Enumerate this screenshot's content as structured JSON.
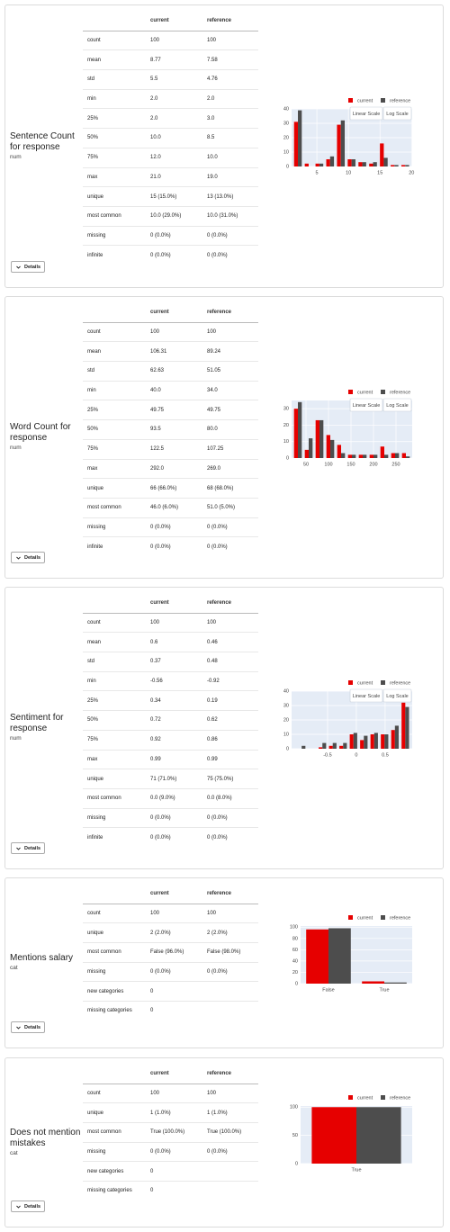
{
  "cards": [
    {
      "title": "Sentence Count for response",
      "type": "num",
      "details": "Details",
      "scale_buttons": [
        "Linear Scale",
        "Log Scale"
      ],
      "table": {
        "header": [
          "current",
          "reference"
        ],
        "rows": [
          [
            "count",
            "100",
            "100"
          ],
          [
            "mean",
            "8.77",
            "7.58"
          ],
          [
            "std",
            "5.5",
            "4.76"
          ],
          [
            "min",
            "2.0",
            "2.0"
          ],
          [
            "25%",
            "2.0",
            "3.0"
          ],
          [
            "50%",
            "10.0",
            "8.5"
          ],
          [
            "75%",
            "12.0",
            "10.0"
          ],
          [
            "max",
            "21.0",
            "19.0"
          ],
          [
            "unique",
            "15 (15.0%)",
            "13 (13.0%)"
          ],
          [
            "most common",
            "10.0 (29.0%)",
            "10.0 (31.0%)"
          ],
          [
            "missing",
            "0 (0.0%)",
            "0 (0.0%)"
          ],
          [
            "infinite",
            "0 (0.0%)",
            "0 (0.0%)"
          ]
        ]
      }
    },
    {
      "title": "Word Count for response",
      "type": "num",
      "details": "Details",
      "scale_buttons": [
        "Linear Scale",
        "Log Scale"
      ],
      "table": {
        "header": [
          "current",
          "reference"
        ],
        "rows": [
          [
            "count",
            "100",
            "100"
          ],
          [
            "mean",
            "106.31",
            "89.24"
          ],
          [
            "std",
            "62.63",
            "51.05"
          ],
          [
            "min",
            "40.0",
            "34.0"
          ],
          [
            "25%",
            "49.75",
            "49.75"
          ],
          [
            "50%",
            "93.5",
            "80.0"
          ],
          [
            "75%",
            "122.5",
            "107.25"
          ],
          [
            "max",
            "292.0",
            "269.0"
          ],
          [
            "unique",
            "66 (66.0%)",
            "68 (68.0%)"
          ],
          [
            "most common",
            "46.0 (6.0%)",
            "51.0 (5.0%)"
          ],
          [
            "missing",
            "0 (0.0%)",
            "0 (0.0%)"
          ],
          [
            "infinite",
            "0 (0.0%)",
            "0 (0.0%)"
          ]
        ]
      }
    },
    {
      "title": "Sentiment for response",
      "type": "num",
      "details": "Details",
      "scale_buttons": [
        "Linear Scale",
        "Log Scale"
      ],
      "table": {
        "header": [
          "current",
          "reference"
        ],
        "rows": [
          [
            "count",
            "100",
            "100"
          ],
          [
            "mean",
            "0.6",
            "0.46"
          ],
          [
            "std",
            "0.37",
            "0.48"
          ],
          [
            "min",
            "-0.56",
            "-0.92"
          ],
          [
            "25%",
            "0.34",
            "0.19"
          ],
          [
            "50%",
            "0.72",
            "0.62"
          ],
          [
            "75%",
            "0.92",
            "0.86"
          ],
          [
            "max",
            "0.99",
            "0.99"
          ],
          [
            "unique",
            "71 (71.0%)",
            "75 (75.0%)"
          ],
          [
            "most common",
            "0.0 (9.0%)",
            "0.0 (8.0%)"
          ],
          [
            "missing",
            "0 (0.0%)",
            "0 (0.0%)"
          ],
          [
            "infinite",
            "0 (0.0%)",
            "0 (0.0%)"
          ]
        ]
      }
    },
    {
      "title": "Mentions salary",
      "type": "cat",
      "details": "Details",
      "table": {
        "header": [
          "current",
          "reference"
        ],
        "rows": [
          [
            "count",
            "100",
            "100"
          ],
          [
            "unique",
            "2 (2.0%)",
            "2 (2.0%)"
          ],
          [
            "most common",
            "False (96.0%)",
            "False (98.0%)"
          ],
          [
            "missing",
            "0 (0.0%)",
            "0 (0.0%)"
          ],
          [
            "new categories",
            "0"
          ],
          [
            "missing categories",
            "0"
          ]
        ]
      }
    },
    {
      "title": "Does not mention mistakes",
      "type": "cat",
      "details": "Details",
      "table": {
        "header": [
          "current",
          "reference"
        ],
        "rows": [
          [
            "count",
            "100",
            "100"
          ],
          [
            "unique",
            "1 (1.0%)",
            "1 (1.0%)"
          ],
          [
            "most common",
            "True (100.0%)",
            "True (100.0%)"
          ],
          [
            "missing",
            "0 (0.0%)",
            "0 (0.0%)"
          ],
          [
            "new categories",
            "0"
          ],
          [
            "missing categories",
            "0"
          ]
        ]
      }
    }
  ],
  "chart_data": [
    {
      "type": "bar",
      "x": [
        2.0,
        3.7,
        5.4,
        7.1,
        8.8,
        10.5,
        12.2,
        13.9,
        15.6,
        17.3,
        19.0
      ],
      "series": [
        {
          "name": "current",
          "color": "#e60000",
          "values": [
            31,
            2,
            2,
            5,
            29,
            5,
            3,
            2,
            16,
            1,
            1
          ]
        },
        {
          "name": "reference",
          "color": "#4d4d4d",
          "values": [
            39,
            0,
            2,
            7,
            32,
            5,
            3,
            3,
            6,
            1,
            1
          ]
        }
      ],
      "xlim": [
        1,
        20.1
      ],
      "xticks": [
        5,
        10,
        15,
        20
      ],
      "ylim": [
        0,
        40
      ],
      "yticks": [
        0,
        10,
        20,
        30,
        40
      ],
      "grid": true
    },
    {
      "type": "bar",
      "x": [
        32,
        56,
        80,
        104,
        128,
        152,
        176,
        200,
        224,
        248,
        272
      ],
      "series": [
        {
          "name": "current",
          "color": "#e60000",
          "values": [
            30,
            5,
            23,
            14,
            8,
            2,
            2,
            2,
            7,
            3,
            3
          ]
        },
        {
          "name": "reference",
          "color": "#4d4d4d",
          "values": [
            34,
            12,
            23,
            11,
            3,
            2,
            2,
            2,
            2,
            3,
            1
          ]
        }
      ],
      "xlim": [
        18,
        286
      ],
      "xticks": [
        50,
        100,
        150,
        200,
        250
      ],
      "ylim": [
        0,
        35
      ],
      "yticks": [
        0,
        10,
        20,
        30
      ],
      "grid": true
    },
    {
      "type": "bar",
      "x": [
        -0.95,
        -0.77,
        -0.59,
        -0.41,
        -0.23,
        -0.05,
        0.13,
        0.31,
        0.49,
        0.67,
        0.85
      ],
      "series": [
        {
          "name": "current",
          "color": "#e60000",
          "values": [
            0,
            0,
            1,
            2,
            2,
            10,
            6,
            10,
            10,
            13,
            32
          ]
        },
        {
          "name": "reference",
          "color": "#4d4d4d",
          "values": [
            2,
            0,
            4,
            4,
            4,
            11,
            9,
            11,
            10,
            16,
            29
          ]
        }
      ],
      "xlim": [
        -1.125,
        0.97
      ],
      "xticks": [
        -0.5,
        0,
        0.5
      ],
      "ylim": [
        0,
        40
      ],
      "yticks": [
        0,
        10,
        20,
        30,
        40
      ],
      "grid": true
    },
    {
      "type": "bar",
      "categories": [
        "False",
        "True"
      ],
      "series": [
        {
          "name": "current",
          "color": "#e60000",
          "values": [
            96,
            4
          ]
        },
        {
          "name": "reference",
          "color": "#4d4d4d",
          "values": [
            98,
            2
          ]
        }
      ],
      "ylim": [
        0,
        102
      ],
      "yticks": [
        0,
        20,
        40,
        60,
        80,
        100
      ],
      "grid": true
    },
    {
      "type": "bar",
      "categories": [
        "True"
      ],
      "series": [
        {
          "name": "current",
          "color": "#e60000",
          "values": [
            100
          ]
        },
        {
          "name": "reference",
          "color": "#4d4d4d",
          "values": [
            100
          ]
        }
      ],
      "ylim": [
        0,
        102
      ],
      "yticks": [
        0,
        50,
        100
      ],
      "grid": true
    }
  ]
}
